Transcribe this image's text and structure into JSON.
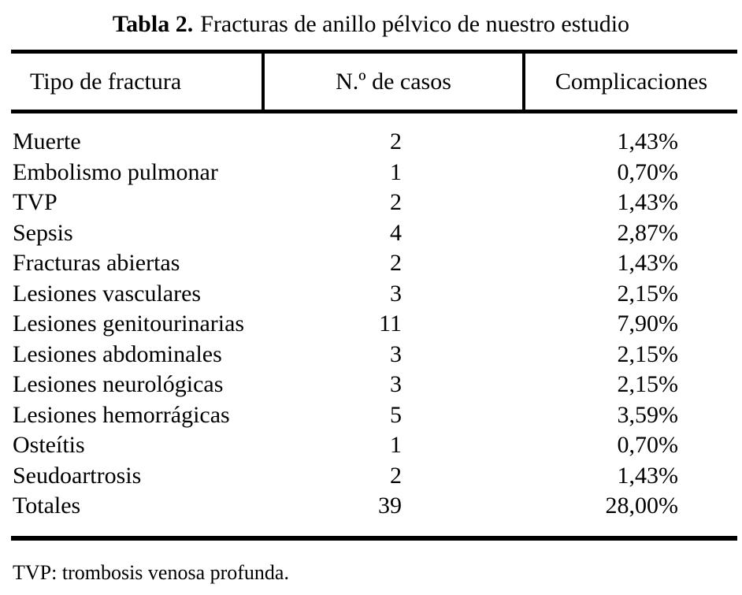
{
  "title": {
    "label": "Tabla 2.",
    "text": "Fracturas de anillo pélvico de nuestro estudio"
  },
  "table": {
    "columns": [
      "Tipo de fractura",
      "N.º de casos",
      "Complicaciones"
    ],
    "rows": [
      [
        "Muerte",
        "2",
        "1,43%"
      ],
      [
        "Embolismo pulmonar",
        "1",
        "0,70%"
      ],
      [
        "TVP",
        "2",
        "1,43%"
      ],
      [
        "Sepsis",
        "4",
        "2,87%"
      ],
      [
        "Fracturas abiertas",
        "2",
        "1,43%"
      ],
      [
        "Lesiones vasculares",
        "3",
        "2,15%"
      ],
      [
        "Lesiones genitourinarias",
        "11",
        "7,90%"
      ],
      [
        "Lesiones abdominales",
        "3",
        "2,15%"
      ],
      [
        "Lesiones neurológicas",
        "3",
        "2,15%"
      ],
      [
        "Lesiones hemorrágicas",
        "5",
        "3,59%"
      ],
      [
        "Osteítis",
        "1",
        "0,70%"
      ],
      [
        "Seudoartrosis",
        "2",
        "1,43%"
      ],
      [
        "Totales",
        "39",
        "28,00%"
      ]
    ]
  },
  "footnote": "TVP: trombosis venosa profunda."
}
